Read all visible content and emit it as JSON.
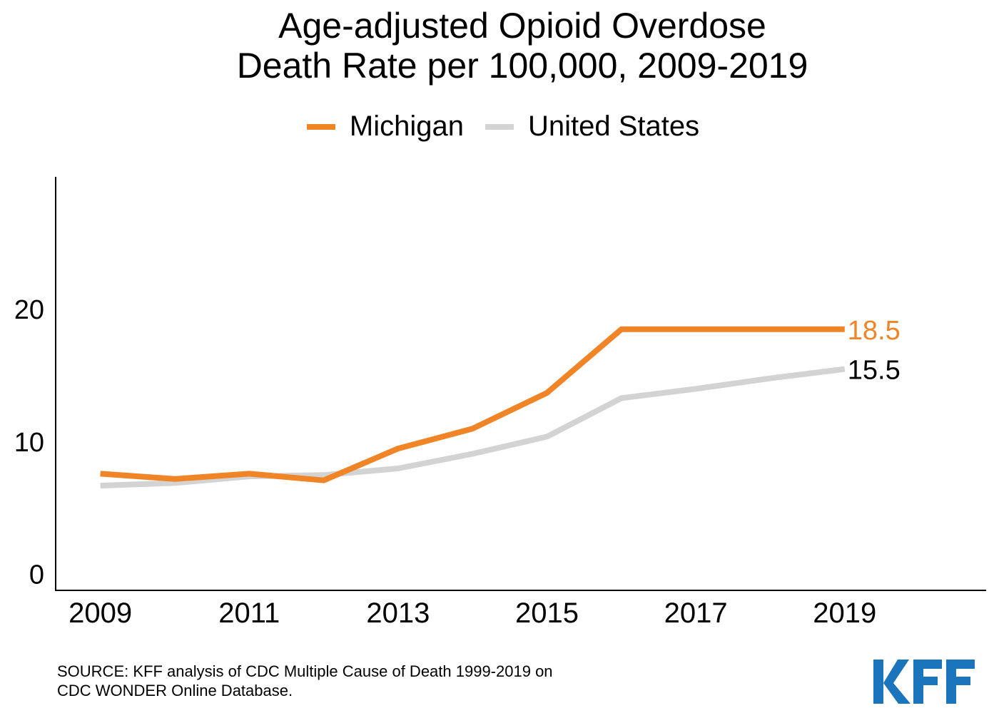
{
  "chart_data": {
    "type": "line",
    "title_line1": "Age-adjusted Opioid Overdose",
    "title_line2": "Death Rate per 100,000, 2009-2019",
    "x": [
      2009,
      2010,
      2011,
      2012,
      2013,
      2014,
      2015,
      2016,
      2017,
      2018,
      2019
    ],
    "x_tick_labels": [
      "2009",
      "2011",
      "2013",
      "2015",
      "2017",
      "2019"
    ],
    "x_ticks": [
      2009,
      2011,
      2013,
      2015,
      2017,
      2019
    ],
    "y_tick_labels": [
      "0",
      "10",
      "20"
    ],
    "y_ticks": [
      0,
      10,
      20
    ],
    "xlim": [
      2008.4,
      2020.9
    ],
    "ylim": [
      -1.2,
      30
    ],
    "grid": false,
    "legend_position": "top-center",
    "series": [
      {
        "name": "Michigan",
        "color": "#f08528",
        "values": [
          7.6,
          7.2,
          7.6,
          7.1,
          9.5,
          11.0,
          13.7,
          18.5,
          18.5,
          18.5,
          18.5
        ],
        "end_label": "18.5"
      },
      {
        "name": "United States",
        "color": "#d3d3d3",
        "values": [
          6.7,
          6.9,
          7.4,
          7.5,
          8.0,
          9.1,
          10.4,
          13.3,
          14.0,
          14.8,
          15.5
        ],
        "end_label": "15.5"
      }
    ]
  },
  "source": {
    "line1": "SOURCE: KFF analysis of CDC Multiple Cause of Death 1999-2019 on",
    "line2": "CDC WONDER Online Database."
  },
  "logo": {
    "text": "KFF",
    "color": "#1b75bc"
  }
}
